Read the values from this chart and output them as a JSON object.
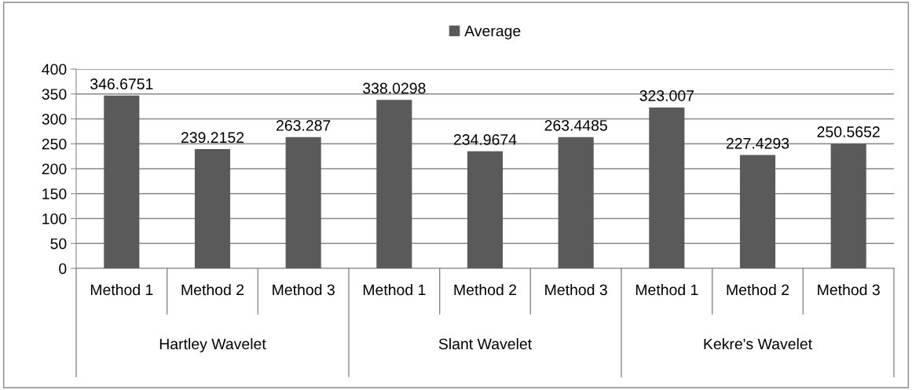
{
  "chart_data": {
    "type": "bar",
    "categories": [
      "Method 1",
      "Method 2",
      "Method 3",
      "Method 1",
      "Method 2",
      "Method 3",
      "Method 1",
      "Method 2",
      "Method 3"
    ],
    "series": [
      {
        "name": "Average",
        "color": "#5a5a5a",
        "values": [
          346.6751,
          239.2152,
          263.287,
          338.0298,
          234.9674,
          263.4485,
          323.007,
          227.4293,
          250.5652
        ]
      }
    ],
    "annotations": [
      "Hartley Wavelet",
      "Slant Wavelet",
      "Kekre's Wavelet"
    ],
    "ylim": [
      0,
      400
    ],
    "yticks": [
      0,
      50,
      100,
      150,
      200,
      250,
      300,
      350,
      400
    ],
    "grid": "y",
    "legend": "top",
    "data_labels": true
  }
}
